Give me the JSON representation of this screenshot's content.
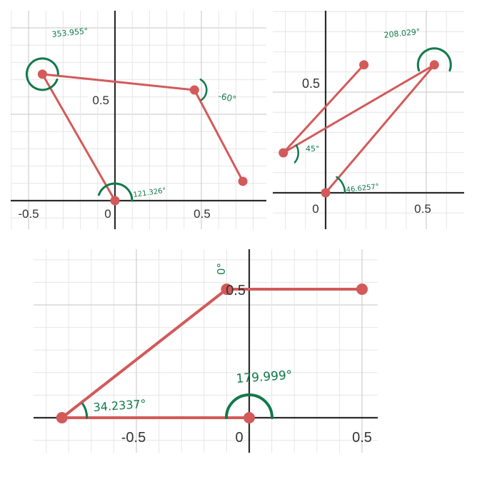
{
  "colors": {
    "grid_minor": "#e6e6e6",
    "grid_major": "#c4c4c4",
    "axis": "#2b2b2b",
    "segment": "#d35a5a",
    "angle": "#107a4a",
    "tick_text": "#333333"
  },
  "panels": [
    {
      "id": "panel-1",
      "tick_labels": {
        "x": [
          "-0.5",
          "0",
          "0.5"
        ],
        "y": [
          "0.5"
        ]
      },
      "points": [
        {
          "x": -0.42,
          "y": 0.72
        },
        {
          "x": 0.46,
          "y": 0.63
        },
        {
          "x": 0.74,
          "y": 0.11
        },
        {
          "x": 0.0,
          "y": 0.0
        }
      ],
      "segments": [
        [
          0,
          1
        ],
        [
          1,
          2
        ],
        [
          3,
          0
        ]
      ],
      "angles": [
        {
          "text": "353.955°",
          "at": 0
        },
        {
          "text": "-60°",
          "at": 1
        },
        {
          "text": "121.326°",
          "at": 3
        }
      ]
    },
    {
      "id": "panel-2",
      "tick_labels": {
        "x": [
          "0",
          "0.5"
        ],
        "y": [
          "0.5"
        ]
      },
      "points": [
        {
          "x": -0.21,
          "y": 0.2
        },
        {
          "x": 0.19,
          "y": 0.64
        },
        {
          "x": 0.54,
          "y": 0.64
        },
        {
          "x": 0.0,
          "y": 0.0
        }
      ],
      "segments": [
        [
          0,
          1
        ],
        [
          0,
          2
        ],
        [
          3,
          2
        ]
      ],
      "angles": [
        {
          "text": "45°",
          "at": 0
        },
        {
          "text": "208.029°",
          "at": 2
        },
        {
          "text": "46.6257°",
          "at": 3
        }
      ]
    },
    {
      "id": "panel-3",
      "tick_labels": {
        "x": [
          "-0.5",
          "0",
          "0.5"
        ],
        "y": [
          "0.5"
        ]
      },
      "points": [
        {
          "x": -0.83,
          "y": 0.0
        },
        {
          "x": -0.1,
          "y": 0.5
        },
        {
          "x": 0.5,
          "y": 0.5
        },
        {
          "x": 0.0,
          "y": 0.0
        }
      ],
      "segments": [
        [
          0,
          1
        ],
        [
          1,
          2
        ],
        [
          0,
          3
        ]
      ],
      "angles": [
        {
          "text": "34.2337°",
          "at": 0
        },
        {
          "text": "0°",
          "at": 1
        },
        {
          "text": "179.999°",
          "at": 3
        }
      ]
    }
  ]
}
